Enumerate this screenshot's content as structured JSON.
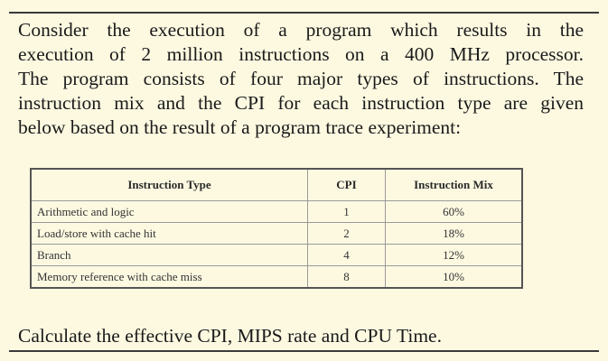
{
  "paragraph_lines": [
    "Consider the execution of a program which results in the",
    "execution of 2 million instructions on a 400 MHz processor.",
    "The program consists of four major types of instructions. The",
    "instruction mix and the CPI for each instruction type are given",
    "below based on the result of a program trace experiment:"
  ],
  "table": {
    "headers": {
      "type": "Instruction Type",
      "cpi": "CPI",
      "mix": "Instruction Mix"
    },
    "rows": [
      {
        "type": "Arithmetic and logic",
        "cpi": "1",
        "mix": "60%"
      },
      {
        "type": "Load/store with cache hit",
        "cpi": "2",
        "mix": "18%"
      },
      {
        "type": "Branch",
        "cpi": "4",
        "mix": "12%"
      },
      {
        "type": "Memory reference with cache miss",
        "cpi": "8",
        "mix": "10%"
      }
    ]
  },
  "question": "Calculate the effective CPI, MIPS rate and CPU Time."
}
